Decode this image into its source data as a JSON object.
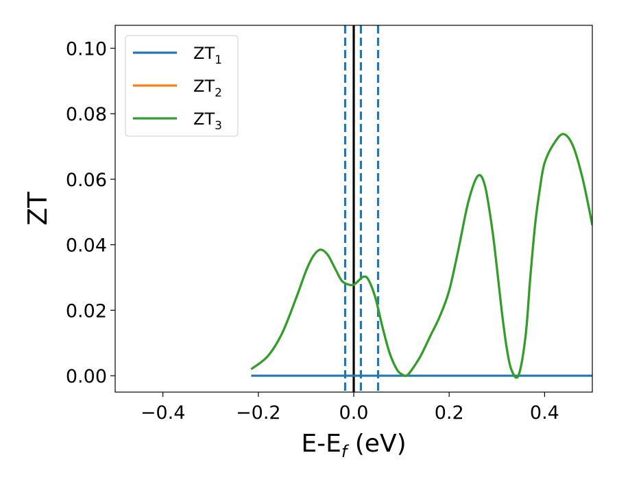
{
  "chart_data": {
    "type": "line",
    "xlabel": "E-E",
    "xlabel_sub": "f",
    "xlabel_unit": " (eV)",
    "ylabel": "ZT",
    "xlim": [
      -0.5,
      0.5
    ],
    "ylim": [
      -0.005,
      0.107
    ],
    "x_ticks": [
      -0.4,
      -0.2,
      0.0,
      0.2,
      0.4
    ],
    "x_tick_labels": [
      "−0.4",
      "−0.2",
      "0.0",
      "0.2",
      "0.4"
    ],
    "y_ticks": [
      0.0,
      0.02,
      0.04,
      0.06,
      0.08,
      0.1
    ],
    "y_tick_labels": [
      "0.00",
      "0.02",
      "0.04",
      "0.06",
      "0.08",
      "0.10"
    ],
    "grid": false,
    "legend_position": "top-left",
    "series": [
      {
        "name": "ZT",
        "name_sub": "1",
        "color": "#1f77b4",
        "x": [
          -0.215,
          0.5
        ],
        "y": [
          0.0,
          0.0
        ]
      },
      {
        "name": "ZT",
        "name_sub": "2",
        "color": "#ff7f0e",
        "x": [
          -0.215,
          -0.18,
          -0.15,
          -0.12,
          -0.1,
          -0.085,
          -0.07,
          -0.055,
          -0.04,
          -0.025,
          -0.01,
          0.0,
          0.01,
          0.02,
          0.03,
          0.045,
          0.06,
          0.075,
          0.09,
          0.1,
          0.11,
          0.12,
          0.14,
          0.16,
          0.18,
          0.2,
          0.22,
          0.24,
          0.26,
          0.275,
          0.29,
          0.3,
          0.31,
          0.32,
          0.33,
          0.345,
          0.36,
          0.37,
          0.38,
          0.39,
          0.4,
          0.42,
          0.44,
          0.46,
          0.48,
          0.5
        ],
        "y": [
          0.002,
          0.006,
          0.013,
          0.024,
          0.032,
          0.0365,
          0.0385,
          0.037,
          0.033,
          0.029,
          0.0278,
          0.0278,
          0.029,
          0.0302,
          0.0295,
          0.024,
          0.015,
          0.007,
          0.002,
          0.0005,
          0.0,
          0.0015,
          0.006,
          0.012,
          0.018,
          0.026,
          0.039,
          0.053,
          0.061,
          0.058,
          0.045,
          0.033,
          0.02,
          0.009,
          0.002,
          0.0,
          0.012,
          0.03,
          0.046,
          0.057,
          0.065,
          0.071,
          0.0738,
          0.07,
          0.06,
          0.046
        ]
      },
      {
        "name": "ZT",
        "name_sub": "3",
        "color": "#2ca02c",
        "x": [
          -0.215,
          -0.18,
          -0.15,
          -0.12,
          -0.1,
          -0.085,
          -0.07,
          -0.055,
          -0.04,
          -0.025,
          -0.01,
          0.0,
          0.01,
          0.02,
          0.03,
          0.045,
          0.06,
          0.075,
          0.09,
          0.1,
          0.11,
          0.12,
          0.14,
          0.16,
          0.18,
          0.2,
          0.22,
          0.24,
          0.26,
          0.275,
          0.29,
          0.3,
          0.31,
          0.32,
          0.33,
          0.345,
          0.36,
          0.37,
          0.38,
          0.39,
          0.4,
          0.42,
          0.44,
          0.46,
          0.48,
          0.5
        ],
        "y": [
          0.002,
          0.006,
          0.013,
          0.024,
          0.032,
          0.0365,
          0.0385,
          0.037,
          0.033,
          0.029,
          0.0278,
          0.0278,
          0.029,
          0.0302,
          0.0295,
          0.024,
          0.015,
          0.007,
          0.002,
          0.0005,
          0.0,
          0.0015,
          0.006,
          0.012,
          0.018,
          0.026,
          0.039,
          0.053,
          0.061,
          0.058,
          0.045,
          0.033,
          0.02,
          0.009,
          0.002,
          0.0,
          0.012,
          0.03,
          0.046,
          0.057,
          0.065,
          0.071,
          0.0738,
          0.07,
          0.06,
          0.046
        ]
      }
    ],
    "vlines": [
      {
        "x": 0.0,
        "color": "#000000",
        "style": "solid"
      },
      {
        "x": -0.018,
        "color": "#1f77b4",
        "style": "dashed"
      },
      {
        "x": 0.015,
        "color": "#1f77b4",
        "style": "dashed"
      },
      {
        "x": 0.051,
        "color": "#1f77b4",
        "style": "dashed"
      }
    ]
  }
}
